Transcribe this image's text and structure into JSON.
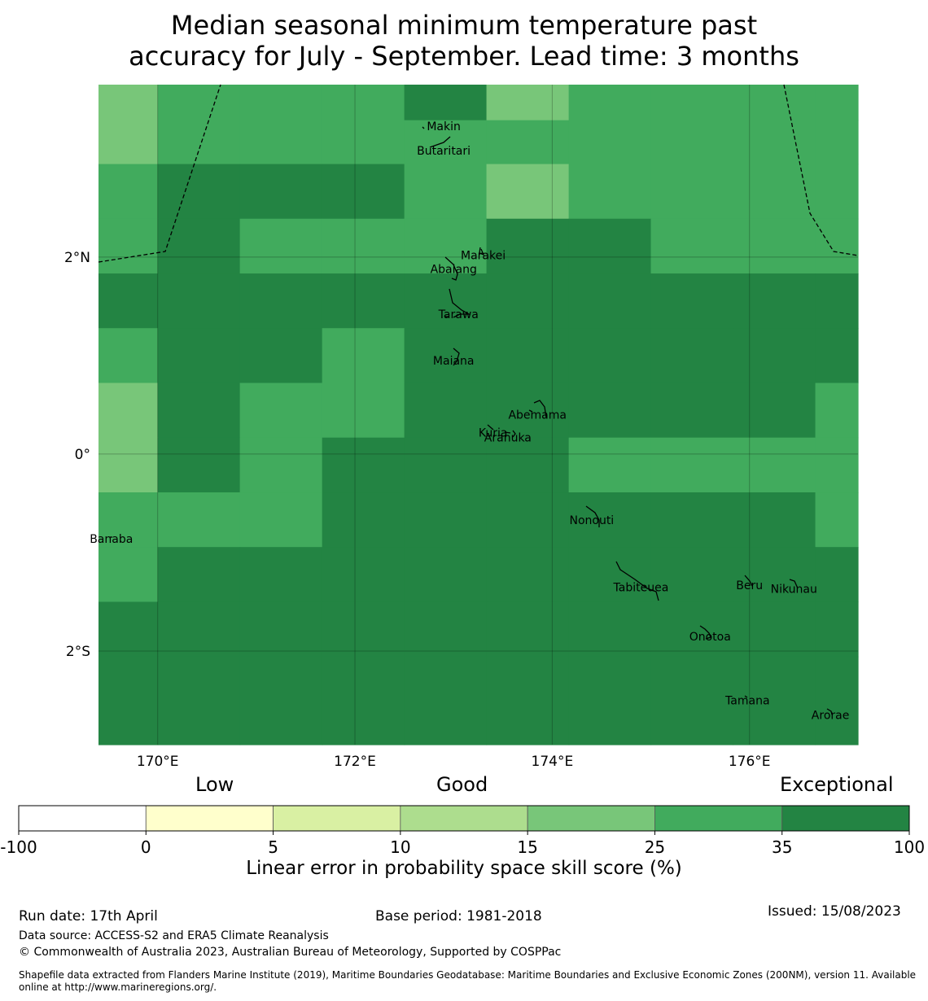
{
  "title_line1": "Median seasonal minimum temperature past",
  "title_line2": "accuracy for July - September. Lead time: 3 months",
  "colors": {
    "c15_25": "#78c679",
    "c25_35": "#41ab5d",
    "c35_100": "#238443"
  },
  "map": {
    "lon_range": [
      169.4,
      177.1
    ],
    "lat_range": [
      -2.95,
      3.75
    ],
    "lon_ticks": [
      {
        "value": 170,
        "label": "170°E"
      },
      {
        "value": 172,
        "label": "172°E"
      },
      {
        "value": 174,
        "label": "174°E"
      },
      {
        "value": 176,
        "label": "176°E"
      }
    ],
    "lat_ticks": [
      {
        "value": 2,
        "label": "2°N"
      },
      {
        "value": 0,
        "label": "0°"
      },
      {
        "value": -2,
        "label": "2°S"
      }
    ],
    "grid": {
      "lon_edges": [
        169.4,
        170.0,
        170.833,
        171.667,
        172.5,
        173.333,
        174.167,
        175.0,
        175.833,
        176.667,
        177.1
      ],
      "lat_edges": [
        3.75,
        3.389,
        2.944,
        2.389,
        1.833,
        1.278,
        0.722,
        0.167,
        -0.389,
        -0.944,
        -1.5,
        -2.056,
        -2.95
      ],
      "rows": [
        [
          "c15_25",
          "c25_35",
          "c25_35",
          "c25_35",
          "c35_100",
          "c15_25",
          "c25_35",
          "c25_35",
          "c25_35",
          "c25_35"
        ],
        [
          "c15_25",
          "c25_35",
          "c25_35",
          "c25_35",
          "c25_35",
          "c25_35",
          "c25_35",
          "c25_35",
          "c25_35",
          "c25_35"
        ],
        [
          "c25_35",
          "c35_100",
          "c35_100",
          "c35_100",
          "c25_35",
          "c15_25",
          "c25_35",
          "c25_35",
          "c25_35",
          "c25_35"
        ],
        [
          "c25_35",
          "c35_100",
          "c25_35",
          "c25_35",
          "c25_35",
          "c35_100",
          "c35_100",
          "c25_35",
          "c25_35",
          "c25_35"
        ],
        [
          "c35_100",
          "c35_100",
          "c35_100",
          "c35_100",
          "c35_100",
          "c35_100",
          "c35_100",
          "c35_100",
          "c35_100",
          "c35_100"
        ],
        [
          "c25_35",
          "c35_100",
          "c35_100",
          "c25_35",
          "c35_100",
          "c35_100",
          "c35_100",
          "c35_100",
          "c35_100",
          "c35_100"
        ],
        [
          "c15_25",
          "c35_100",
          "c25_35",
          "c25_35",
          "c35_100",
          "c35_100",
          "c35_100",
          "c35_100",
          "c35_100",
          "c25_35"
        ],
        [
          "c15_25",
          "c35_100",
          "c25_35",
          "c35_100",
          "c35_100",
          "c35_100",
          "c25_35",
          "c25_35",
          "c25_35",
          "c25_35"
        ],
        [
          "c25_35",
          "c25_35",
          "c25_35",
          "c35_100",
          "c35_100",
          "c35_100",
          "c35_100",
          "c35_100",
          "c35_100",
          "c25_35"
        ],
        [
          "c25_35",
          "c35_100",
          "c35_100",
          "c35_100",
          "c35_100",
          "c35_100",
          "c35_100",
          "c35_100",
          "c35_100",
          "c35_100"
        ],
        [
          "c35_100",
          "c35_100",
          "c35_100",
          "c35_100",
          "c35_100",
          "c35_100",
          "c35_100",
          "c35_100",
          "c35_100",
          "c35_100"
        ],
        [
          "c35_100",
          "c35_100",
          "c35_100",
          "c35_100",
          "c35_100",
          "c35_100",
          "c35_100",
          "c35_100",
          "c35_100",
          "c35_100"
        ]
      ]
    },
    "islands": [
      {
        "name": "Makin",
        "lon": 172.9,
        "lat": 3.33
      },
      {
        "name": "Butaritari",
        "lon": 172.9,
        "lat": 3.08
      },
      {
        "name": "Marakei",
        "lon": 173.3,
        "lat": 2.02
      },
      {
        "name": "Abaiang",
        "lon": 173.0,
        "lat": 1.88
      },
      {
        "name": "Tarawa",
        "lon": 173.05,
        "lat": 1.42
      },
      {
        "name": "Maiana",
        "lon": 173.0,
        "lat": 0.95
      },
      {
        "name": "Abemama",
        "lon": 173.85,
        "lat": 0.4
      },
      {
        "name": "Kuria",
        "lon": 173.4,
        "lat": 0.22
      },
      {
        "name": "Aranuka",
        "lon": 173.55,
        "lat": 0.17
      },
      {
        "name": "Nonouti",
        "lon": 174.4,
        "lat": -0.67
      },
      {
        "name": "Banaba",
        "lon": 169.53,
        "lat": -0.86
      },
      {
        "name": "Tabiteuea",
        "lon": 174.9,
        "lat": -1.35
      },
      {
        "name": "Beru",
        "lon": 176.0,
        "lat": -1.33
      },
      {
        "name": "Nikunau",
        "lon": 176.45,
        "lat": -1.37
      },
      {
        "name": "Onotoa",
        "lon": 175.6,
        "lat": -1.85
      },
      {
        "name": "Tamana",
        "lon": 175.98,
        "lat": -2.5
      },
      {
        "name": "Arorae",
        "lon": 176.82,
        "lat": -2.65
      }
    ]
  },
  "colorbar": {
    "category_labels": [
      "Low",
      "Good",
      "Exceptional"
    ],
    "bins": [
      {
        "from": -100,
        "to": 0,
        "color": "#ffffff"
      },
      {
        "from": 0,
        "to": 5,
        "color": "#ffffcc"
      },
      {
        "from": 5,
        "to": 10,
        "color": "#d9f0a3"
      },
      {
        "from": 10,
        "to": 15,
        "color": "#addd8e"
      },
      {
        "from": 15,
        "to": 25,
        "color": "#78c679"
      },
      {
        "from": 25,
        "to": 35,
        "color": "#41ab5d"
      },
      {
        "from": 35,
        "to": 100,
        "color": "#238443"
      }
    ],
    "tick_labels": [
      "-100",
      "0",
      "5",
      "10",
      "15",
      "25",
      "35",
      "100"
    ],
    "xlabel": "Linear error in probability space skill score (%)"
  },
  "footer": {
    "run_date": "Run date: 17th April",
    "base_period": "Base period: 1981-2018",
    "issued": "Issued: 15/08/2023",
    "data_source": "Data source: ACCESS-S2 and ERA5 Climate Reanalysis",
    "copyright": "© Commonwealth of Australia 2023, Australian Bureau of Meteorology, Supported by COSPPac",
    "shapefile": "Shapefile data extracted from Flanders Marine Institute (2019), Maritime Boundaries Geodatabase: Maritime Boundaries and Exclusive Economic Zones (200NM), version 11. Available online at http://www.marineregions.org/."
  }
}
